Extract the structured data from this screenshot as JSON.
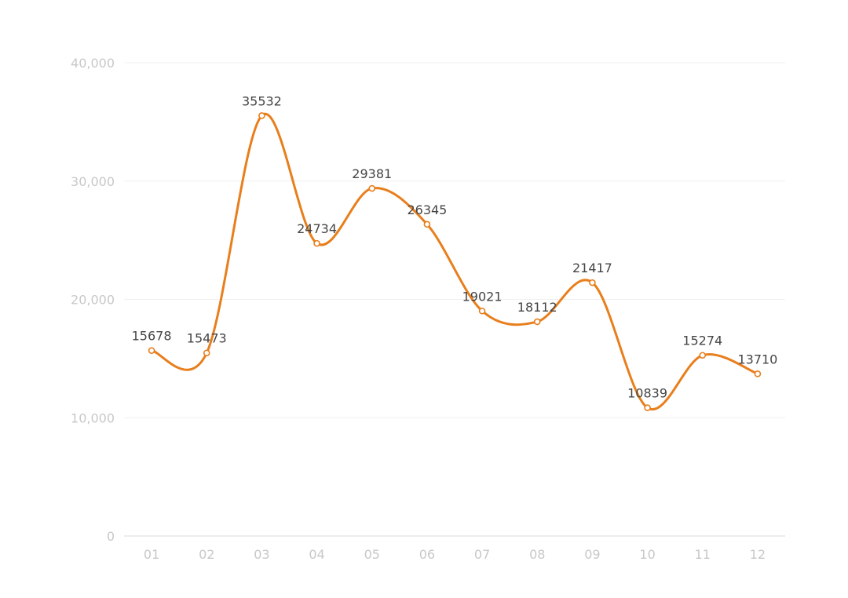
{
  "chart_data": {
    "type": "line",
    "categories": [
      "01",
      "02",
      "03",
      "04",
      "05",
      "06",
      "07",
      "08",
      "09",
      "10",
      "11",
      "12"
    ],
    "series": [
      {
        "values": [
          15678,
          15473,
          35532,
          24734,
          29381,
          26345,
          19021,
          18112,
          21417,
          10839,
          15274,
          13710
        ]
      }
    ],
    "yticks": [
      0,
      10000,
      20000,
      30000,
      40000
    ],
    "ytick_labels": [
      "0",
      "10,000",
      "20,000",
      "30,000",
      "40,000"
    ],
    "ylim": [
      0,
      40000
    ],
    "smooth": true,
    "grid": true,
    "data_labels": true,
    "title": "",
    "xlabel": "",
    "ylabel": "",
    "colors": {
      "line": "#e87e1c",
      "grid": "#f0f0f0",
      "axis": "#e6e6e6",
      "tick_text": "#c8c8c8",
      "label_text": "#444444",
      "marker_fill": "#ffffff"
    }
  }
}
